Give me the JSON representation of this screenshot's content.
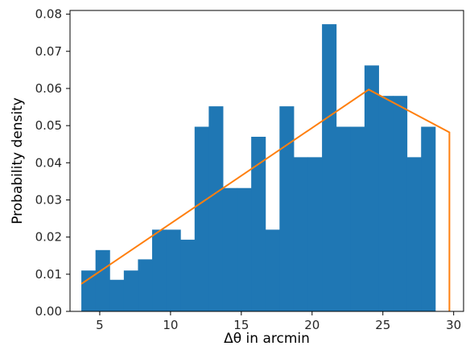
{
  "chart_data": {
    "type": "bar",
    "xlabel": "Δθ in arcmin",
    "ylabel": "Probability density",
    "xlim": [
      2.9,
      30.7
    ],
    "ylim": [
      0.0,
      0.081
    ],
    "grid": false,
    "x_ticks": [
      {
        "value": 5,
        "label": "5"
      },
      {
        "value": 10,
        "label": "10"
      },
      {
        "value": 15,
        "label": "15"
      },
      {
        "value": 20,
        "label": "20"
      },
      {
        "value": 25,
        "label": "25"
      },
      {
        "value": 30,
        "label": "30"
      }
    ],
    "y_ticks": [
      {
        "value": 0.0,
        "label": "0.00"
      },
      {
        "value": 0.01,
        "label": "0.01"
      },
      {
        "value": 0.02,
        "label": "0.02"
      },
      {
        "value": 0.03,
        "label": "0.03"
      },
      {
        "value": 0.04,
        "label": "0.04"
      },
      {
        "value": 0.05,
        "label": "0.05"
      },
      {
        "value": 0.06,
        "label": "0.06"
      },
      {
        "value": 0.07,
        "label": "0.07"
      },
      {
        "value": 0.08,
        "label": "0.08"
      }
    ],
    "series": [
      {
        "type": "histogram",
        "color": "#1f77b4",
        "bin_edges": [
          3.7,
          4.7,
          5.7,
          6.7,
          7.7,
          8.7,
          9.7,
          10.7,
          11.7,
          12.7,
          13.7,
          14.7,
          15.7,
          16.7,
          17.7,
          18.7,
          19.7,
          20.7,
          21.7,
          22.7,
          23.7,
          24.7,
          25.7,
          26.7,
          27.7,
          28.7,
          29.7
        ],
        "values": [
          0.011,
          0.0165,
          0.0085,
          0.011,
          0.014,
          0.022,
          0.022,
          0.0193,
          0.0497,
          0.0552,
          0.0332,
          0.0332,
          0.047,
          0.022,
          0.0552,
          0.0415,
          0.0415,
          0.0773,
          0.0497,
          0.0497,
          0.0662,
          0.058,
          0.058,
          0.0415,
          0.0497,
          0.0
        ]
      },
      {
        "type": "line",
        "color": "#ff7f0e",
        "x": [
          3.7,
          24.0,
          29.7,
          29.7
        ],
        "y": [
          0.0074,
          0.0597,
          0.0482,
          0.0
        ]
      }
    ]
  }
}
